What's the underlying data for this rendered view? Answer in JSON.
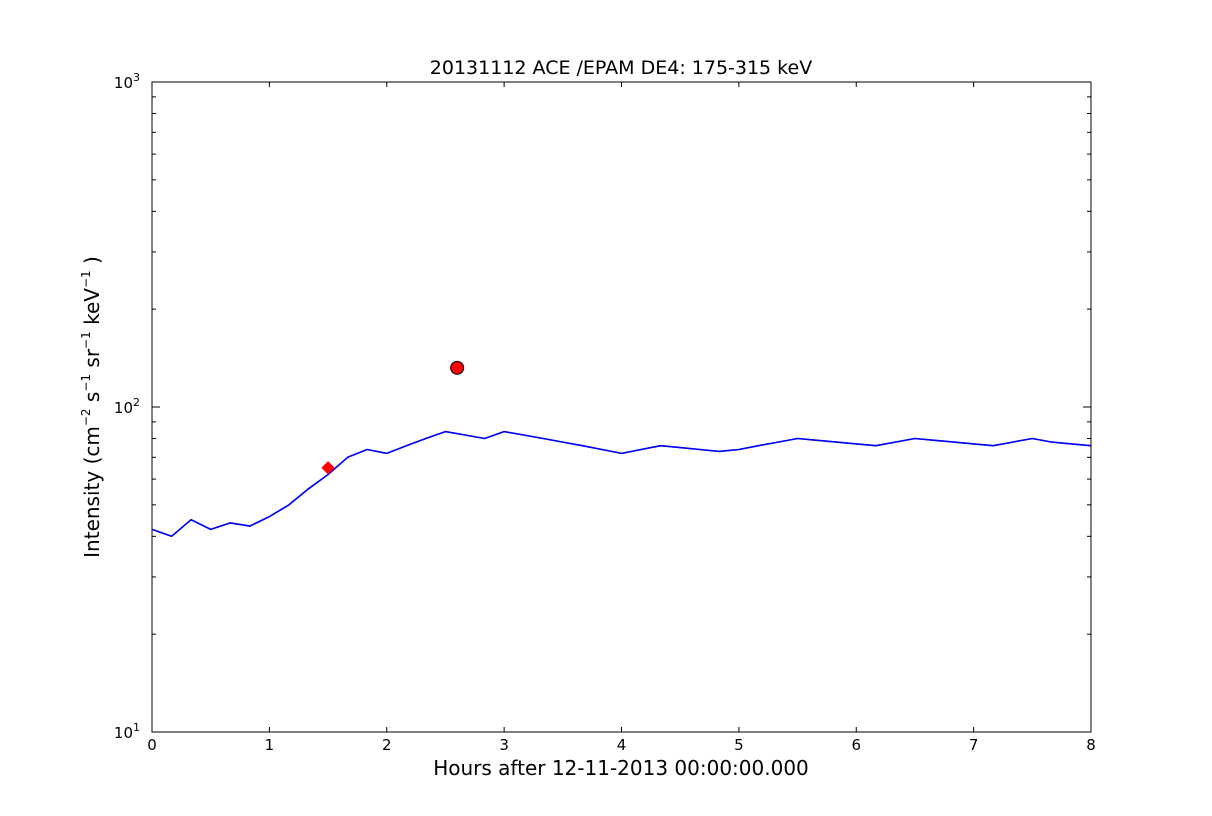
{
  "chart_data": {
    "type": "line",
    "title": "20131112 ACE /EPAM DE4: 175-315 keV",
    "xlabel": "Hours after 12-11-2013 00:00:00.000",
    "ylabel": {
      "prefix": "Intensity (cm",
      "exp1": "−2",
      "s": " s",
      "exp2": "−1",
      "sr": " sr",
      "exp3": "−1",
      "kev": " keV",
      "exp4": "−1",
      "suffix": " )"
    },
    "xlim": [
      0,
      8
    ],
    "ylim": [
      10,
      1000
    ],
    "yscale": "log",
    "grid": false,
    "x_ticks": [
      0,
      1,
      2,
      3,
      4,
      5,
      6,
      7,
      8
    ],
    "x_tick_labels": [
      "0",
      "1",
      "2",
      "3",
      "4",
      "5",
      "6",
      "7",
      "8"
    ],
    "y_ticks": [
      10,
      100,
      1000
    ],
    "y_tick_labels": [
      {
        "base": "10",
        "exp": "1"
      },
      {
        "base": "10",
        "exp": "2"
      },
      {
        "base": "10",
        "exp": "3"
      }
    ],
    "series": [
      {
        "color": "#000000",
        "style": "raw",
        "x": [
          0.0,
          0.167,
          0.333,
          0.5,
          0.667,
          0.833,
          1.0,
          1.167,
          1.333,
          1.5,
          1.667,
          1.833,
          2.0,
          2.167,
          2.333,
          2.5,
          2.667,
          2.833,
          3.0,
          3.167,
          3.333,
          3.5,
          3.667,
          3.833,
          4.0,
          4.167,
          4.333,
          4.5,
          4.667,
          4.833,
          5.0,
          5.167,
          5.333,
          5.5,
          5.667,
          5.833,
          6.0,
          6.167,
          6.333,
          6.5,
          6.667,
          6.833,
          7.0,
          7.167,
          7.333,
          7.5,
          7.667,
          7.833,
          8.0
        ],
        "y": [
          42,
          40,
          45,
          42,
          44,
          43,
          46,
          50,
          56,
          62,
          70,
          74,
          72,
          76,
          80,
          84,
          82,
          80,
          84,
          82,
          80,
          78,
          76,
          74,
          72,
          74,
          76,
          75,
          74,
          73,
          74,
          76,
          78,
          80,
          79,
          78,
          77,
          76,
          78,
          80,
          79,
          78,
          77,
          76,
          78,
          80,
          78,
          77,
          76
        ]
      },
      {
        "color": "#0000ff",
        "style": "smoothed",
        "x": [
          0.0,
          0.167,
          0.333,
          0.5,
          0.667,
          0.833,
          1.0,
          1.167,
          1.333,
          1.5,
          1.667,
          1.833,
          2.0,
          2.167,
          2.333,
          2.5,
          2.667,
          2.833,
          3.0,
          3.167,
          3.333,
          3.5,
          3.667,
          3.833,
          4.0,
          4.167,
          4.333,
          4.5,
          4.667,
          4.833,
          5.0,
          5.167,
          5.333,
          5.5,
          5.667,
          5.833,
          6.0,
          6.167,
          6.333,
          6.5,
          6.667,
          6.833,
          7.0,
          7.167,
          7.333,
          7.5,
          7.667,
          7.833,
          8.0
        ],
        "y": [
          42,
          40,
          45,
          42,
          44,
          43,
          46,
          50,
          56,
          62,
          70,
          74,
          72,
          76,
          80,
          84,
          82,
          80,
          84,
          82,
          80,
          78,
          76,
          74,
          72,
          74,
          76,
          75,
          74,
          73,
          74,
          76,
          78,
          80,
          79,
          78,
          77,
          76,
          78,
          80,
          79,
          78,
          77,
          76,
          78,
          80,
          78,
          77,
          76
        ]
      }
    ],
    "markers": [
      {
        "x": 1.5,
        "y": 65,
        "color": "#ff0000",
        "shape": "diamond"
      },
      {
        "x": 2.6,
        "y": 132,
        "color": "#ff0000",
        "shape": "circle"
      }
    ]
  }
}
